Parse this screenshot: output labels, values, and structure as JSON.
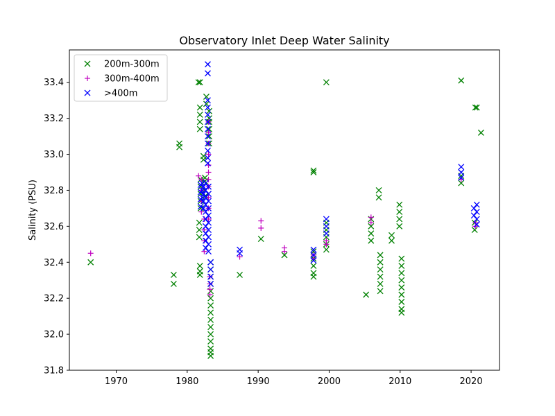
{
  "chart_data": {
    "type": "scatter",
    "title": "Observatory Inlet Deep Water Salinity",
    "xlabel": "",
    "ylabel": "Salinity (PSU)",
    "xlim": [
      1963.4,
      2024.0
    ],
    "ylim": [
      31.8,
      33.58
    ],
    "xticks": [
      1970,
      1980,
      1990,
      2000,
      2010,
      2020
    ],
    "xtick_labels": [
      "1970",
      "1980",
      "1990",
      "2000",
      "2010",
      "2020"
    ],
    "yticks": [
      31.8,
      32.0,
      32.2,
      32.4,
      32.6,
      32.8,
      33.0,
      33.2,
      33.4
    ],
    "ytick_labels": [
      "31.8",
      "32.0",
      "32.2",
      "32.4",
      "32.6",
      "32.8",
      "33.0",
      "33.2",
      "33.4"
    ],
    "grid": false,
    "legend_position": "top-left",
    "series": [
      {
        "name": "200m-300m",
        "marker": "x",
        "color": "#008000",
        "points": [
          [
            1966.4,
            32.4
          ],
          [
            1978.1,
            32.33
          ],
          [
            1978.1,
            32.28
          ],
          [
            1978.9,
            33.06
          ],
          [
            1978.9,
            33.04
          ],
          [
            1981.6,
            33.4
          ],
          [
            1981.8,
            33.4
          ],
          [
            1981.8,
            33.26
          ],
          [
            1981.8,
            33.22
          ],
          [
            1981.8,
            33.18
          ],
          [
            1981.8,
            33.14
          ],
          [
            1981.9,
            32.86
          ],
          [
            1981.9,
            32.82
          ],
          [
            1981.9,
            32.78
          ],
          [
            1981.9,
            32.74
          ],
          [
            1981.9,
            32.7
          ],
          [
            1981.7,
            32.62
          ],
          [
            1981.7,
            32.58
          ],
          [
            1981.7,
            32.54
          ],
          [
            1981.8,
            32.38
          ],
          [
            1981.8,
            32.35
          ],
          [
            1981.8,
            32.33
          ],
          [
            1982.3,
            32.99
          ],
          [
            1982.3,
            32.97
          ],
          [
            1982.5,
            32.87
          ],
          [
            1982.5,
            32.85
          ],
          [
            1982.5,
            32.8
          ],
          [
            1982.6,
            32.77
          ],
          [
            1982.7,
            33.32
          ],
          [
            1982.7,
            33.28
          ],
          [
            1983.1,
            33.24
          ],
          [
            1983.1,
            33.2
          ],
          [
            1983.1,
            33.18
          ],
          [
            1983.1,
            33.14
          ],
          [
            1983.1,
            33.1
          ],
          [
            1983.1,
            33.06
          ],
          [
            1983.3,
            32.4
          ],
          [
            1983.3,
            32.36
          ],
          [
            1983.3,
            32.32
          ],
          [
            1983.3,
            32.28
          ],
          [
            1983.3,
            32.24
          ],
          [
            1983.3,
            32.2
          ],
          [
            1983.3,
            32.16
          ],
          [
            1983.3,
            32.12
          ],
          [
            1983.3,
            32.08
          ],
          [
            1983.3,
            32.04
          ],
          [
            1983.3,
            32.0
          ],
          [
            1983.3,
            31.96
          ],
          [
            1983.3,
            31.92
          ],
          [
            1983.3,
            31.9
          ],
          [
            1983.3,
            31.88
          ],
          [
            1987.4,
            32.33
          ],
          [
            1990.4,
            32.53
          ],
          [
            1993.7,
            32.44
          ],
          [
            1997.8,
            32.91
          ],
          [
            1997.8,
            32.9
          ],
          [
            1997.8,
            32.46
          ],
          [
            1997.8,
            32.42
          ],
          [
            1997.8,
            32.38
          ],
          [
            1997.8,
            32.34
          ],
          [
            1997.8,
            32.32
          ],
          [
            1999.6,
            33.4
          ],
          [
            1999.6,
            32.62
          ],
          [
            1999.6,
            32.58
          ],
          [
            1999.6,
            32.54
          ],
          [
            1999.6,
            32.5
          ],
          [
            1999.6,
            32.47
          ],
          [
            2005.2,
            32.22
          ],
          [
            2005.9,
            32.64
          ],
          [
            2005.9,
            32.6
          ],
          [
            2005.9,
            32.56
          ],
          [
            2005.9,
            32.52
          ],
          [
            2007.0,
            32.8
          ],
          [
            2007.0,
            32.76
          ],
          [
            2007.2,
            32.44
          ],
          [
            2007.2,
            32.4
          ],
          [
            2007.2,
            32.36
          ],
          [
            2007.2,
            32.32
          ],
          [
            2007.2,
            32.28
          ],
          [
            2007.2,
            32.24
          ],
          [
            2008.8,
            32.55
          ],
          [
            2008.8,
            32.52
          ],
          [
            2009.9,
            32.72
          ],
          [
            2009.9,
            32.68
          ],
          [
            2009.9,
            32.64
          ],
          [
            2009.9,
            32.6
          ],
          [
            2010.2,
            32.42
          ],
          [
            2010.2,
            32.38
          ],
          [
            2010.2,
            32.34
          ],
          [
            2010.2,
            32.3
          ],
          [
            2010.2,
            32.26
          ],
          [
            2010.2,
            32.22
          ],
          [
            2010.2,
            32.18
          ],
          [
            2010.2,
            32.14
          ],
          [
            2010.2,
            32.12
          ],
          [
            2018.6,
            33.41
          ],
          [
            2018.6,
            32.88
          ],
          [
            2018.6,
            32.84
          ],
          [
            2020.6,
            33.26
          ],
          [
            2020.8,
            33.26
          ],
          [
            2020.5,
            32.62
          ],
          [
            2020.5,
            32.58
          ],
          [
            2021.4,
            33.12
          ]
        ]
      },
      {
        "name": "300m-400m",
        "marker": "+",
        "color": "#bf00bf",
        "points": [
          [
            1966.4,
            32.45
          ],
          [
            1981.6,
            32.88
          ],
          [
            1982.0,
            32.86
          ],
          [
            1982.0,
            32.8
          ],
          [
            1982.0,
            32.74
          ],
          [
            1982.0,
            32.68
          ],
          [
            1982.4,
            32.64
          ],
          [
            1982.4,
            32.58
          ],
          [
            1982.4,
            32.52
          ],
          [
            1982.4,
            32.46
          ],
          [
            1983.0,
            33.18
          ],
          [
            1983.0,
            33.12
          ],
          [
            1983.0,
            33.06
          ],
          [
            1983.0,
            33.0
          ],
          [
            1983.0,
            32.94
          ],
          [
            1983.0,
            32.9
          ],
          [
            1983.0,
            32.86
          ],
          [
            1983.0,
            32.82
          ],
          [
            1983.0,
            32.76
          ],
          [
            1983.0,
            32.7
          ],
          [
            1983.0,
            32.64
          ],
          [
            1983.2,
            32.32
          ],
          [
            1983.2,
            32.28
          ],
          [
            1983.2,
            32.25
          ],
          [
            1983.2,
            32.22
          ],
          [
            1987.4,
            32.43
          ],
          [
            1990.4,
            32.63
          ],
          [
            1990.4,
            32.59
          ],
          [
            1993.7,
            32.48
          ],
          [
            1993.7,
            32.46
          ],
          [
            1997.8,
            32.44
          ],
          [
            1997.8,
            32.42
          ],
          [
            1999.6,
            32.52
          ],
          [
            1999.6,
            32.5
          ],
          [
            2005.9,
            32.65
          ],
          [
            2005.9,
            32.62
          ],
          [
            2018.6,
            32.86
          ],
          [
            2020.6,
            32.62
          ],
          [
            2020.6,
            32.6
          ]
        ]
      },
      {
        "name": ">400m",
        "marker": "x",
        "color": "#0000ff",
        "points": [
          [
            1981.9,
            32.83
          ],
          [
            1981.9,
            32.79
          ],
          [
            1981.9,
            32.75
          ],
          [
            1981.9,
            32.71
          ],
          [
            1982.1,
            32.84
          ],
          [
            1982.1,
            32.8
          ],
          [
            1982.1,
            32.76
          ],
          [
            1982.3,
            32.82
          ],
          [
            1982.3,
            32.78
          ],
          [
            1982.3,
            32.74
          ],
          [
            1982.3,
            32.7
          ],
          [
            1982.6,
            32.84
          ],
          [
            1982.6,
            32.8
          ],
          [
            1982.6,
            32.76
          ],
          [
            1982.6,
            32.72
          ],
          [
            1982.6,
            32.68
          ],
          [
            1982.6,
            32.64
          ],
          [
            1982.6,
            32.6
          ],
          [
            1982.6,
            32.56
          ],
          [
            1982.6,
            32.52
          ],
          [
            1982.6,
            32.48
          ],
          [
            1982.9,
            33.5
          ],
          [
            1982.9,
            33.45
          ],
          [
            1982.9,
            33.3
          ],
          [
            1982.9,
            33.26
          ],
          [
            1982.9,
            33.22
          ],
          [
            1982.9,
            33.18
          ],
          [
            1982.9,
            33.14
          ],
          [
            1982.9,
            33.1
          ],
          [
            1982.9,
            33.06
          ],
          [
            1982.9,
            33.02
          ],
          [
            1982.9,
            32.98
          ],
          [
            1982.9,
            32.95
          ],
          [
            1983.0,
            32.82
          ],
          [
            1983.0,
            32.78
          ],
          [
            1983.0,
            32.74
          ],
          [
            1983.0,
            32.7
          ],
          [
            1983.0,
            32.66
          ],
          [
            1983.0,
            32.62
          ],
          [
            1983.0,
            32.58
          ],
          [
            1983.0,
            32.54
          ],
          [
            1983.0,
            32.5
          ],
          [
            1983.0,
            32.46
          ],
          [
            1983.3,
            32.4
          ],
          [
            1983.3,
            32.36
          ],
          [
            1983.3,
            32.32
          ],
          [
            1983.3,
            32.28
          ],
          [
            1987.4,
            32.47
          ],
          [
            1987.4,
            32.45
          ],
          [
            1997.8,
            32.47
          ],
          [
            1997.8,
            32.44
          ],
          [
            1997.8,
            32.41
          ],
          [
            1999.6,
            32.64
          ],
          [
            1999.6,
            32.6
          ],
          [
            1999.6,
            32.56
          ],
          [
            2018.6,
            32.93
          ],
          [
            2018.6,
            32.9
          ],
          [
            2018.6,
            32.87
          ],
          [
            2020.4,
            32.7
          ],
          [
            2020.4,
            32.66
          ],
          [
            2020.8,
            32.72
          ],
          [
            2020.8,
            32.68
          ],
          [
            2020.8,
            32.64
          ],
          [
            2020.8,
            32.61
          ]
        ]
      }
    ]
  }
}
